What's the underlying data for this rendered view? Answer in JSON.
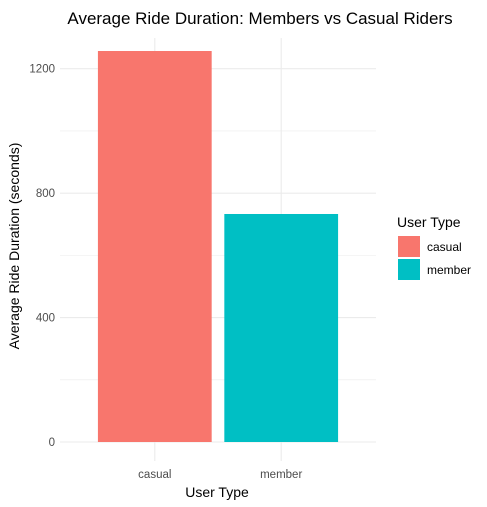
{
  "chart_data": {
    "type": "bar",
    "title": "Average Ride Duration: Members vs Casual Riders",
    "xlabel": "User Type",
    "ylabel": "Average Ride Duration (seconds)",
    "categories": [
      "casual",
      "member"
    ],
    "values": [
      1257,
      733
    ],
    "colors": [
      "#F8766D",
      "#00BFC4"
    ],
    "ylim": [
      0,
      1257
    ],
    "yticks": [
      0,
      400,
      800,
      1200
    ],
    "grid": true,
    "legend": {
      "title": "User Type",
      "position": "right",
      "entries": [
        {
          "label": "casual",
          "color": "#F8766D"
        },
        {
          "label": "member",
          "color": "#00BFC4"
        }
      ]
    }
  }
}
